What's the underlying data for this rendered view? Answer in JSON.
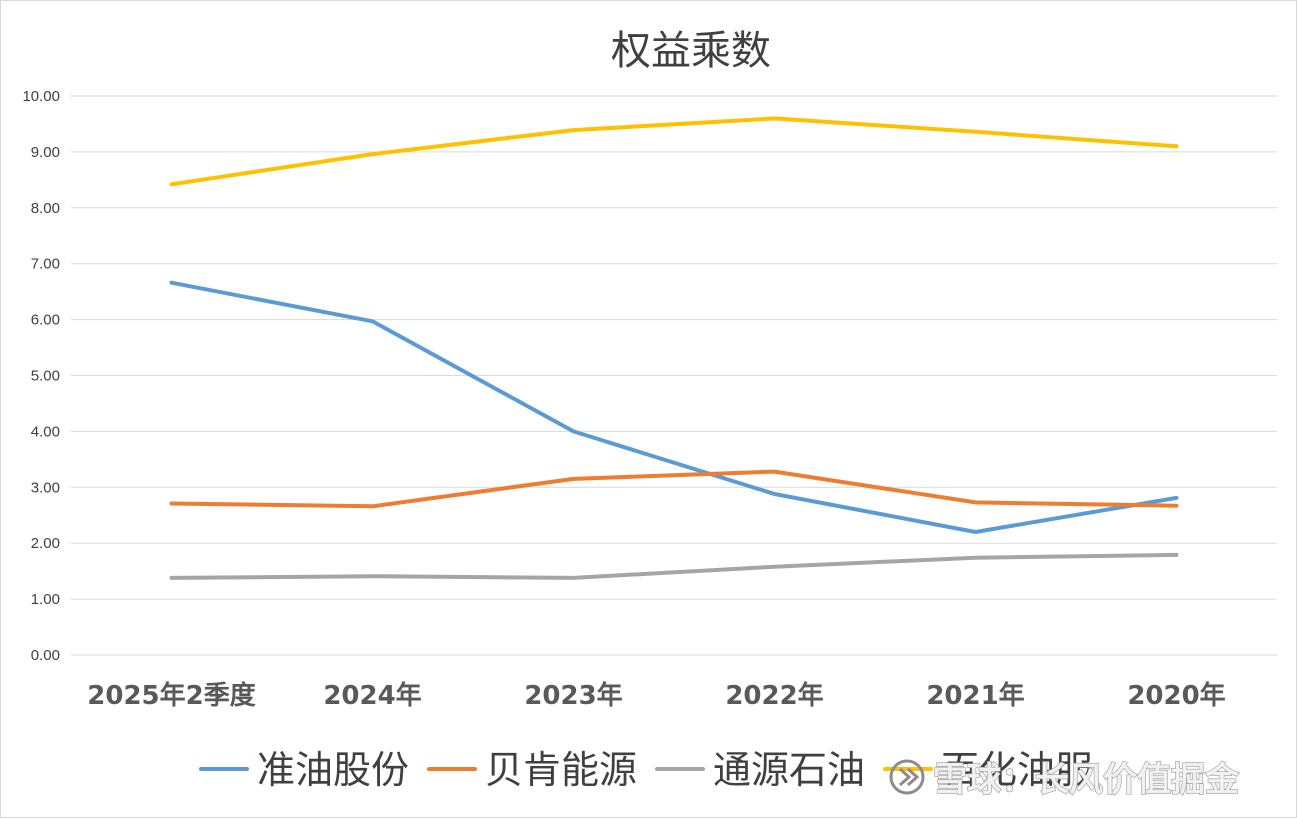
{
  "chart_data": {
    "type": "line",
    "title": "权益乘数",
    "categories": [
      "2025年2季度",
      "2024年",
      "2023年",
      "2022年",
      "2021年",
      "2020年"
    ],
    "ylim": [
      0,
      10
    ],
    "yticks": [
      "0.00",
      "1.00",
      "2.00",
      "3.00",
      "4.00",
      "5.00",
      "6.00",
      "7.00",
      "8.00",
      "9.00",
      "10.00"
    ],
    "grid": true,
    "legend_position": "bottom",
    "series": [
      {
        "name": "准油股份",
        "color": "#5b9bd5",
        "values": [
          6.66,
          5.97,
          4.0,
          2.88,
          2.2,
          2.81
        ]
      },
      {
        "name": "贝肯能源",
        "color": "#ed7d31",
        "values": [
          2.71,
          2.66,
          3.15,
          3.28,
          2.73,
          2.67
        ]
      },
      {
        "name": "通源石油",
        "color": "#a5a5a5",
        "values": [
          1.38,
          1.41,
          1.38,
          1.58,
          1.74,
          1.79
        ]
      },
      {
        "name": "百化油服",
        "color": "#ffc000",
        "values": [
          8.42,
          8.96,
          9.39,
          9.6,
          9.36,
          9.1
        ]
      }
    ]
  },
  "watermark": {
    "text": "雪球：长风价值掘金",
    "icon": "snowball-logo-icon"
  }
}
